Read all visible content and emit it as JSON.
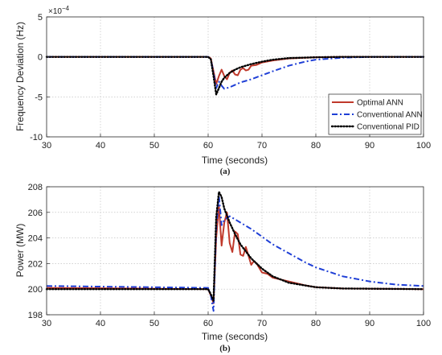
{
  "chart_data": [
    {
      "type": "line",
      "sublabel": "(a)",
      "xlabel": "Time (seconds)",
      "ylabel": "Frequency Deviation (Hz)",
      "y_exponent_label": "×10^{-4}",
      "y_exponent_base": "×10",
      "y_exponent_power": "−4",
      "xlim": [
        30,
        100
      ],
      "ylim": [
        -10,
        5
      ],
      "xticks": [
        30,
        40,
        50,
        60,
        70,
        80,
        90,
        100
      ],
      "yticks": [
        5,
        0,
        -5,
        -10
      ],
      "ytick_labels": [
        "5",
        "0",
        "-5",
        "-10"
      ],
      "grid": true,
      "legend_position": "bottom-right",
      "series": [
        {
          "name": "Optimal ANN",
          "color": "#c0392b",
          "style": "solid",
          "points": [
            [
              30,
              0
            ],
            [
              60,
              0
            ],
            [
              60.5,
              -0.2
            ],
            [
              61,
              -1.8
            ],
            [
              61.5,
              -3.4
            ],
            [
              62,
              -2.4
            ],
            [
              62.5,
              -1.6
            ],
            [
              63,
              -2.4
            ],
            [
              63.5,
              -2.8
            ],
            [
              64,
              -2.0
            ],
            [
              64.5,
              -1.7
            ],
            [
              65,
              -2.2
            ],
            [
              65.5,
              -2.3
            ],
            [
              66,
              -1.6
            ],
            [
              66.5,
              -1.4
            ],
            [
              67,
              -1.7
            ],
            [
              67.5,
              -1.6
            ],
            [
              68,
              -1.1
            ],
            [
              69,
              -1.0
            ],
            [
              70,
              -0.7
            ],
            [
              72,
              -0.45
            ],
            [
              75,
              -0.2
            ],
            [
              80,
              -0.05
            ],
            [
              85,
              0
            ],
            [
              100,
              0
            ]
          ]
        },
        {
          "name": "Conventional ANN",
          "color": "#1f3fd6",
          "style": "dashdot",
          "points": [
            [
              30,
              0
            ],
            [
              60,
              0
            ],
            [
              60.5,
              -0.3
            ],
            [
              61,
              -2.0
            ],
            [
              61.5,
              -3.9
            ],
            [
              62,
              -3.1
            ],
            [
              62.5,
              -3.6
            ],
            [
              63,
              -4.0
            ],
            [
              64,
              -3.8
            ],
            [
              65,
              -3.5
            ],
            [
              66,
              -3.2
            ],
            [
              68,
              -2.8
            ],
            [
              70,
              -2.3
            ],
            [
              72,
              -1.8
            ],
            [
              75,
              -1.1
            ],
            [
              78,
              -0.6
            ],
            [
              80,
              -0.35
            ],
            [
              85,
              -0.1
            ],
            [
              90,
              0
            ],
            [
              100,
              0
            ]
          ]
        },
        {
          "name": "Conventional PID",
          "color": "#000000",
          "style": "dotted",
          "points": [
            [
              30,
              0
            ],
            [
              60,
              0
            ],
            [
              60.5,
              -0.3
            ],
            [
              61,
              -2.4
            ],
            [
              61.5,
              -4.7
            ],
            [
              62,
              -3.9
            ],
            [
              62.5,
              -3.1
            ],
            [
              63,
              -2.6
            ],
            [
              64,
              -2.0
            ],
            [
              65,
              -1.6
            ],
            [
              66,
              -1.3
            ],
            [
              68,
              -0.9
            ],
            [
              70,
              -0.6
            ],
            [
              72,
              -0.35
            ],
            [
              75,
              -0.15
            ],
            [
              80,
              -0.05
            ],
            [
              85,
              0
            ],
            [
              100,
              0
            ]
          ]
        }
      ]
    },
    {
      "type": "line",
      "sublabel": "(b)",
      "xlabel": "Time (seconds)",
      "ylabel": "Power (MW)",
      "xlim": [
        30,
        100
      ],
      "ylim": [
        198,
        208
      ],
      "xticks": [
        30,
        40,
        50,
        60,
        70,
        80,
        90,
        100
      ],
      "yticks": [
        198,
        200,
        202,
        204,
        206,
        208
      ],
      "grid": true,
      "series": [
        {
          "name": "Optimal ANN",
          "color": "#c0392b",
          "style": "solid",
          "points": [
            [
              30,
              200.1
            ],
            [
              60,
              200
            ],
            [
              60.5,
              199.5
            ],
            [
              61,
              198.9
            ],
            [
              61.5,
              204.0
            ],
            [
              62,
              206.5
            ],
            [
              62.5,
              203.4
            ],
            [
              63,
              205.2
            ],
            [
              63.5,
              206.0
            ],
            [
              64,
              203.6
            ],
            [
              64.5,
              202.9
            ],
            [
              65,
              204.5
            ],
            [
              65.5,
              204.3
            ],
            [
              66,
              202.7
            ],
            [
              66.5,
              202.6
            ],
            [
              67,
              203.3
            ],
            [
              67.5,
              202.6
            ],
            [
              68,
              201.9
            ],
            [
              68.5,
              202.2
            ],
            [
              69,
              202.0
            ],
            [
              70,
              201.3
            ],
            [
              71,
              201.2
            ],
            [
              72,
              200.9
            ],
            [
              74,
              200.7
            ],
            [
              76,
              200.5
            ],
            [
              78,
              200.3
            ],
            [
              80,
              200.15
            ],
            [
              85,
              200.05
            ],
            [
              100,
              200
            ]
          ]
        },
        {
          "name": "Conventional ANN",
          "color": "#1f3fd6",
          "style": "dashdot",
          "points": [
            [
              30,
              200.25
            ],
            [
              60,
              200.1
            ],
            [
              60.5,
              199.5
            ],
            [
              61,
              198.3
            ],
            [
              61.5,
              204.8
            ],
            [
              62,
              207.3
            ],
            [
              62.5,
              205.0
            ],
            [
              63,
              205.4
            ],
            [
              64,
              205.7
            ],
            [
              66,
              205.2
            ],
            [
              68,
              204.7
            ],
            [
              70,
              204.1
            ],
            [
              72,
              203.5
            ],
            [
              75,
              202.8
            ],
            [
              78,
              202.1
            ],
            [
              80,
              201.7
            ],
            [
              85,
              201.0
            ],
            [
              90,
              200.6
            ],
            [
              95,
              200.35
            ],
            [
              100,
              200.25
            ]
          ]
        },
        {
          "name": "Conventional PID",
          "color": "#000000",
          "style": "dotted",
          "points": [
            [
              30,
              200
            ],
            [
              60,
              200
            ],
            [
              60.5,
              199.6
            ],
            [
              61,
              199.1
            ],
            [
              61.5,
              205.6
            ],
            [
              62,
              207.6
            ],
            [
              62.5,
              207.2
            ],
            [
              63,
              206.3
            ],
            [
              64,
              205.2
            ],
            [
              65,
              204.3
            ],
            [
              66,
              203.5
            ],
            [
              68,
              202.4
            ],
            [
              70,
              201.6
            ],
            [
              72,
              201.0
            ],
            [
              75,
              200.5
            ],
            [
              80,
              200.15
            ],
            [
              85,
              200.05
            ],
            [
              100,
              200
            ]
          ]
        }
      ]
    }
  ]
}
